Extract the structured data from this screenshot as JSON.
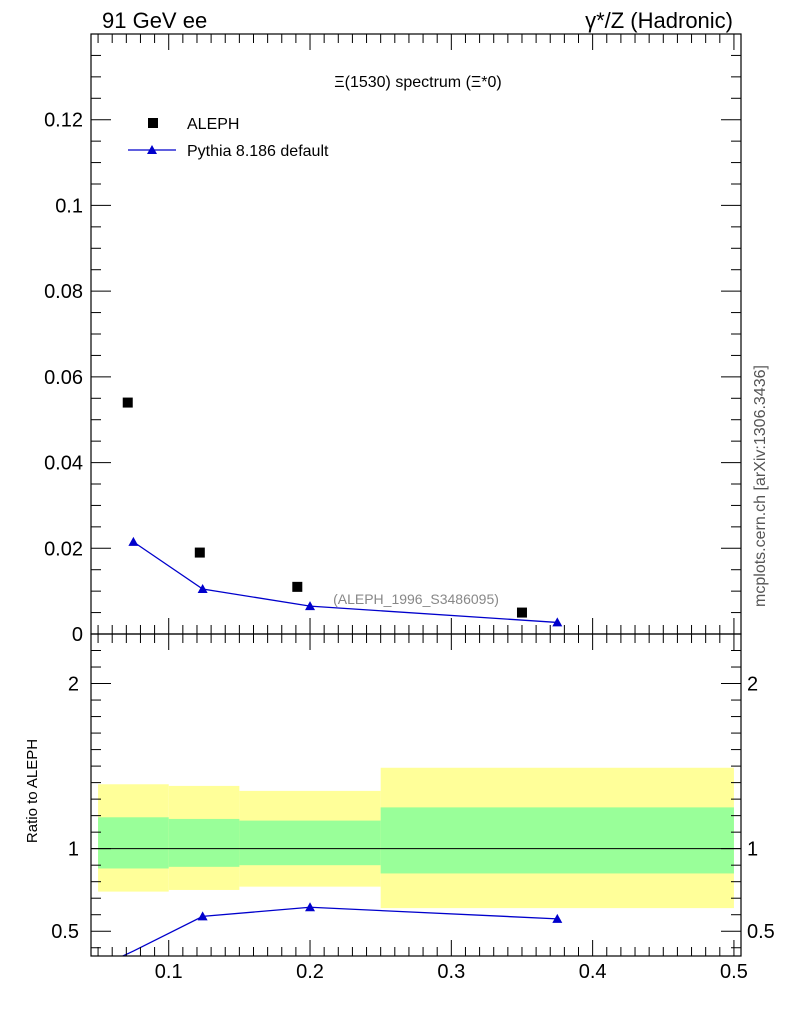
{
  "header": {
    "left_title": "91 GeV ee",
    "right_title": "γ*/Z (Hadronic)"
  },
  "side_label": "mcplots.cern.ch [arXiv:1306.3436]",
  "chart_data": [
    {
      "type": "scatter",
      "panel": "main",
      "title": "Ξ(1530) spectrum (Ξ*0)",
      "annotation": "(ALEPH_1996_S3486095)",
      "xlim": [
        0.045,
        0.505
      ],
      "ylim": [
        0,
        0.14
      ],
      "yticks": [
        0,
        0.02,
        0.04,
        0.06,
        0.08,
        0.1,
        0.12
      ],
      "ytick_labels": [
        "0",
        "0.02",
        "0.04",
        "0.06",
        "0.08",
        "0.1",
        "0.12"
      ],
      "legend_placement": "top-left",
      "series": [
        {
          "name": "ALEPH",
          "marker": "square",
          "color": "#000000",
          "x": [
            0.071,
            0.122,
            0.191,
            0.35
          ],
          "y": [
            0.054,
            0.019,
            0.011,
            0.005
          ]
        },
        {
          "name": "Pythia 8.186 default",
          "marker": "triangle",
          "color": "#0000cc",
          "line": true,
          "x": [
            0.075,
            0.124,
            0.2,
            0.375
          ],
          "y": [
            0.0215,
            0.0105,
            0.0065,
            0.0027
          ]
        }
      ]
    },
    {
      "type": "line",
      "panel": "ratio",
      "ylabel": "Ratio to ALEPH",
      "xlim": [
        0.045,
        0.505
      ],
      "ylim": [
        0.35,
        2.3
      ],
      "yticks": [
        0.5,
        1,
        2
      ],
      "ytick_labels": [
        "0.5",
        "1",
        "2"
      ],
      "xticks": [
        0.1,
        0.2,
        0.3,
        0.4,
        0.5
      ],
      "xtick_labels": [
        "0.1",
        "0.2",
        "0.3",
        "0.4",
        "0.5"
      ],
      "reference_line": 1,
      "bands": [
        {
          "x0": 0.05,
          "x1": 0.1,
          "inner": [
            0.88,
            1.19
          ],
          "outer": [
            0.74,
            1.39
          ]
        },
        {
          "x0": 0.1,
          "x1": 0.15,
          "inner": [
            0.89,
            1.18
          ],
          "outer": [
            0.75,
            1.38
          ]
        },
        {
          "x0": 0.15,
          "x1": 0.25,
          "inner": [
            0.9,
            1.17
          ],
          "outer": [
            0.77,
            1.35
          ]
        },
        {
          "x0": 0.25,
          "x1": 0.5,
          "inner": [
            0.85,
            1.25
          ],
          "outer": [
            0.64,
            1.49
          ]
        }
      ],
      "band_colors": {
        "inner": "#99ff99",
        "outer": "#ffff99"
      },
      "series": [
        {
          "name": "Pythia 8.186 default",
          "color": "#0000cc",
          "x": [
            0.045,
            0.075,
            0.124,
            0.2,
            0.375
          ],
          "y": [
            0.26,
            0.38,
            0.59,
            0.645,
            0.575
          ],
          "markers": [
            false,
            false,
            true,
            true,
            true
          ]
        }
      ]
    }
  ]
}
